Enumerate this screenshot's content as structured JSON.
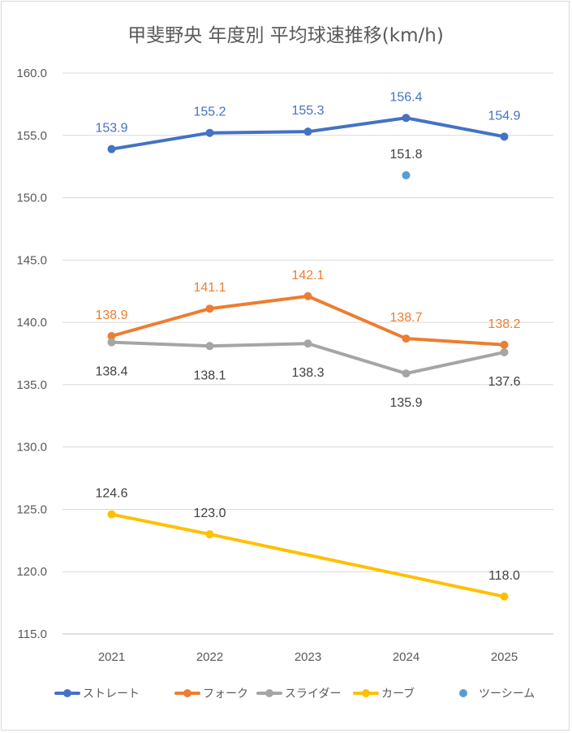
{
  "chart_data": {
    "type": "line",
    "title": "甲斐野央 年度別 平均球速推移(km/h)",
    "xlabel": "",
    "ylabel": "",
    "categories": [
      "2021",
      "2022",
      "2023",
      "2024",
      "2025"
    ],
    "ylim": [
      115.0,
      160.0
    ],
    "yticks": [
      "160.0",
      "155.0",
      "150.0",
      "145.0",
      "140.0",
      "135.0",
      "130.0",
      "125.0",
      "120.0",
      "115.0"
    ],
    "grid": true,
    "legend_position": "bottom",
    "series": [
      {
        "name": "ストレート",
        "color": "#4472C4",
        "label_color": "#4472C4",
        "label_pos": "above",
        "values": [
          153.9,
          155.2,
          155.3,
          156.4,
          154.9
        ],
        "labels": [
          "153.9",
          "155.2",
          "155.3",
          "156.4",
          "154.9"
        ]
      },
      {
        "name": "フォーク",
        "color": "#ED7D31",
        "label_color": "#ED7D31",
        "label_pos": "above",
        "values": [
          138.9,
          141.1,
          142.1,
          138.7,
          138.2
        ],
        "labels": [
          "138.9",
          "141.1",
          "142.1",
          "138.7",
          "138.2"
        ]
      },
      {
        "name": "スライダー",
        "color": "#A5A5A5",
        "label_color": "#404040",
        "label_pos": "below",
        "values": [
          138.4,
          138.1,
          138.3,
          135.9,
          137.6
        ],
        "labels": [
          "138.4",
          "138.1",
          "138.3",
          "135.9",
          "137.6"
        ]
      },
      {
        "name": "カーブ",
        "color": "#FFC000",
        "label_color": "#404040",
        "label_pos": "above",
        "values": [
          124.6,
          123.0,
          null,
          null,
          118.0
        ],
        "labels": [
          "124.6",
          "123.0",
          null,
          null,
          "118.0"
        ],
        "connect_gaps": true
      },
      {
        "name": "ツーシーム",
        "color": "#5B9BD5",
        "label_color": "#404040",
        "label_pos": "above",
        "values": [
          null,
          null,
          null,
          151.8,
          null
        ],
        "labels": [
          null,
          null,
          null,
          "151.8",
          null
        ]
      }
    ]
  }
}
